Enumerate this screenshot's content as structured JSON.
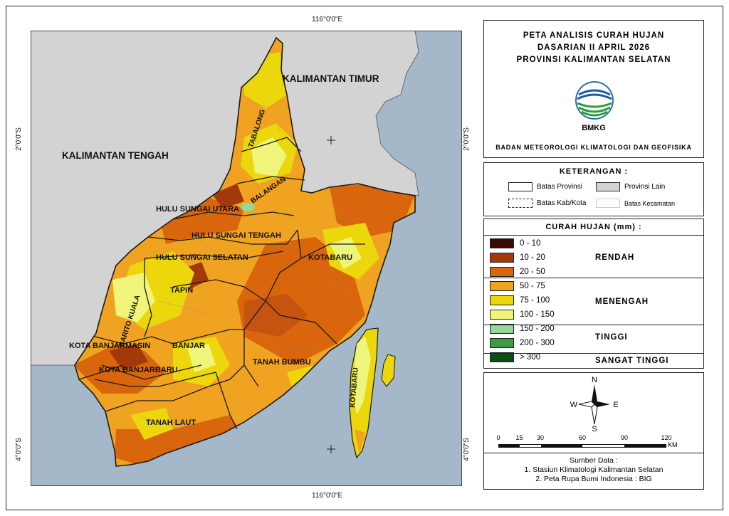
{
  "coordinates": {
    "top": "116°0'0\"E",
    "bottom": "116°0'0\"E",
    "left_upper": "2°0'0\"S",
    "left_lower": "4°0'0\"S",
    "right_upper": "2°0'0\"S",
    "right_lower": "4°0'0\"S"
  },
  "map_labels": {
    "kaltim": "KALIMANTAN TIMUR",
    "kalteng": "KALIMANTAN TENGAH",
    "tabalong": "TABALONG",
    "balangan": "BALANGAN",
    "hsu": "HULU SUNGAI UTARA",
    "hst": "HULU SUNGAI TENGAH",
    "hss": "HULU SUNGAI SELATAN",
    "tapin": "TAPIN",
    "batola": "BARITO KUALA",
    "banjarmasin": "KOTA BANJARMASIN",
    "banjar": "BANJAR",
    "banjarbaru": "KOTA BANJARBARU",
    "tanahbumbu": "TANAH BUMBU",
    "tanahlaut": "TANAH LAUT",
    "kotabaru_main": "KOTABARU",
    "kotabaru_island": "KOTABARU"
  },
  "title": {
    "line1": "PETA ANALISIS CURAH HUJAN",
    "line2": "DASARIAN II APRIL 2026",
    "line3": "PROVINSI KALIMANTAN SELATAN",
    "logo_text": "BMKG",
    "agency": "BADAN METEOROLOGI KLIMATOLOGI DAN GEOFISIKA"
  },
  "legend": {
    "title": "KETERANGAN :",
    "batas_provinsi": "Batas Provinsi",
    "provinsi_lain": "Provinsi Lain",
    "batas_kabkota": "Batas Kab/Kota",
    "batas_kecamatan": "Batas Kecamatan"
  },
  "rainfall": {
    "title": "CURAH HUJAN (mm) :",
    "classes": [
      {
        "label": "0 - 10",
        "color": "#3c0a04"
      },
      {
        "label": "10 - 20",
        "color": "#a3390b"
      },
      {
        "label": "20 - 50",
        "color": "#d9650c"
      },
      {
        "label": "50 - 75",
        "color": "#f0a320"
      },
      {
        "label": "75 - 100",
        "color": "#ecd70c"
      },
      {
        "label": "100 - 150",
        "color": "#eef57a"
      },
      {
        "label": "150 - 200",
        "color": "#93d898"
      },
      {
        "label": "200 - 300",
        "color": "#3f9a44"
      },
      {
        "label": "> 300",
        "color": "#0b4f16"
      }
    ],
    "categories": {
      "rendah": "RENDAH",
      "menengah": "MENENGAH",
      "tinggi": "TINGGI",
      "sangat_tinggi": "SANGAT TINGGI"
    }
  },
  "compass": {
    "n": "N",
    "s": "S",
    "e": "E",
    "w": "W"
  },
  "scale": {
    "ticks": [
      "0",
      "15",
      "30",
      "60",
      "90",
      "120"
    ],
    "unit": "KM"
  },
  "source": {
    "title": "Sumber Data :",
    "line1": "1. Stasiun Klimatologi Kalimantan Selatan",
    "line2": "2. Peta Rupa Bumi Indonesia : BIG"
  },
  "colors": {
    "sea": "#a5b8c9",
    "other_province": "#d3d3d3",
    "boundary": "#1a1a1a"
  }
}
